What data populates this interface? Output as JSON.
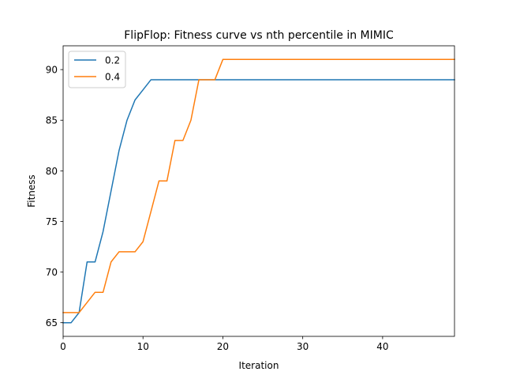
{
  "chart_data": {
    "type": "line",
    "title": "FlipFlop: Fitness curve vs nth percentile in MIMIC",
    "xlabel": "Iteration",
    "ylabel": "Fitness",
    "xlim": [
      0,
      49
    ],
    "ylim": [
      63.65,
      92.35
    ],
    "xticks": [
      0,
      10,
      20,
      30,
      40
    ],
    "yticks": [
      65,
      70,
      75,
      80,
      85,
      90
    ],
    "grid": false,
    "legend_position": "top-left",
    "x": [
      0,
      1,
      2,
      3,
      4,
      5,
      6,
      7,
      8,
      9,
      10,
      11,
      12,
      13,
      14,
      15,
      16,
      17,
      18,
      19,
      20,
      21,
      22,
      23,
      24,
      25,
      26,
      27,
      28,
      29,
      30,
      31,
      32,
      33,
      34,
      35,
      36,
      37,
      38,
      39,
      40,
      41,
      42,
      43,
      44,
      45,
      46,
      47,
      48,
      49
    ],
    "series": [
      {
        "name": "0.2",
        "color": "#1f77b4",
        "values": [
          65,
          65,
          66,
          71,
          71,
          74,
          78,
          82,
          85,
          87,
          88,
          89,
          89,
          89,
          89,
          89,
          89,
          89,
          89,
          89,
          89,
          89,
          89,
          89,
          89,
          89,
          89,
          89,
          89,
          89,
          89,
          89,
          89,
          89,
          89,
          89,
          89,
          89,
          89,
          89,
          89,
          89,
          89,
          89,
          89,
          89,
          89,
          89,
          89,
          89
        ]
      },
      {
        "name": "0.4",
        "color": "#ff7f0e",
        "values": [
          66,
          66,
          66,
          67,
          68,
          68,
          71,
          72,
          72,
          72,
          73,
          76,
          79,
          79,
          83,
          83,
          85,
          89,
          89,
          89,
          91,
          91,
          91,
          91,
          91,
          91,
          91,
          91,
          91,
          91,
          91,
          91,
          91,
          91,
          91,
          91,
          91,
          91,
          91,
          91,
          91,
          91,
          91,
          91,
          91,
          91,
          91,
          91,
          91,
          91
        ]
      }
    ]
  }
}
